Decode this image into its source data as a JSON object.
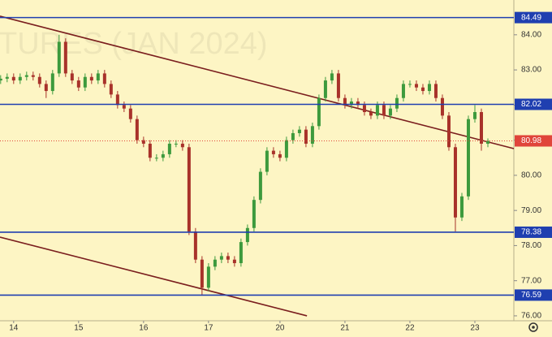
{
  "chart_data": {
    "type": "candlestick",
    "watermark": "TURES (JAN 2024)",
    "x": [
      -2,
      -1,
      0,
      1,
      2,
      3,
      4,
      5,
      6,
      7,
      8,
      9,
      10,
      11,
      12,
      13,
      14,
      15,
      16,
      17,
      18,
      19,
      20,
      21,
      22,
      23,
      24,
      25,
      26,
      27,
      28,
      29,
      30,
      31,
      32,
      33,
      34,
      35,
      36,
      37,
      38,
      39,
      40,
      41,
      42,
      43,
      44,
      45,
      46,
      47,
      48,
      49,
      50,
      51,
      52,
      53,
      54,
      55,
      56,
      57,
      58,
      59,
      60,
      61,
      62,
      63,
      64,
      65,
      66,
      67,
      68,
      69,
      70,
      71,
      72,
      73
    ],
    "open": [
      82.7,
      82.75,
      82.8,
      82.7,
      82.8,
      82.85,
      82.8,
      82.6,
      82.4,
      82.9,
      83.8,
      82.9,
      82.7,
      82.5,
      82.8,
      82.7,
      82.9,
      82.6,
      82.3,
      82.0,
      81.9,
      81.6,
      81.0,
      80.9,
      80.5,
      80.5,
      80.6,
      80.9,
      80.9,
      80.8,
      78.4,
      77.6,
      76.8,
      77.4,
      77.6,
      77.7,
      77.6,
      77.5,
      78.1,
      78.5,
      79.3,
      80.1,
      80.7,
      80.6,
      80.5,
      81.0,
      81.2,
      81.3,
      80.9,
      81.4,
      82.2,
      82.7,
      82.9,
      82.2,
      82.0,
      82.1,
      82.0,
      81.8,
      81.7,
      82.0,
      81.7,
      81.9,
      82.2,
      82.6,
      82.6,
      82.5,
      82.4,
      82.6,
      82.2,
      81.7,
      80.8,
      78.8,
      79.4,
      81.6,
      81.8,
      80.9
    ],
    "high": [
      82.85,
      82.9,
      82.9,
      82.9,
      82.95,
      82.95,
      82.9,
      82.7,
      83.0,
      84.0,
      83.9,
      83.0,
      82.8,
      82.9,
      82.9,
      83.0,
      83.0,
      82.7,
      82.4,
      82.1,
      82.0,
      81.7,
      81.1,
      81.0,
      80.6,
      80.7,
      81.0,
      81.0,
      81.0,
      80.9,
      78.5,
      77.7,
      77.5,
      77.7,
      77.8,
      77.8,
      77.7,
      78.2,
      78.6,
      79.4,
      80.2,
      80.8,
      80.8,
      80.7,
      81.1,
      81.3,
      81.4,
      81.4,
      81.5,
      82.3,
      82.8,
      83.0,
      83.0,
      82.3,
      82.2,
      82.2,
      82.1,
      81.9,
      82.1,
      82.1,
      82.0,
      82.3,
      82.7,
      82.7,
      82.7,
      82.6,
      82.7,
      82.7,
      82.3,
      81.8,
      80.9,
      79.5,
      81.7,
      82.0,
      81.9,
      81.05
    ],
    "low": [
      82.6,
      82.65,
      82.6,
      82.6,
      82.7,
      82.7,
      82.5,
      82.2,
      82.3,
      82.8,
      82.8,
      82.6,
      82.4,
      82.4,
      82.6,
      82.6,
      82.5,
      82.2,
      81.9,
      81.8,
      81.5,
      80.9,
      80.8,
      80.4,
      80.4,
      80.4,
      80.5,
      80.8,
      80.7,
      78.3,
      77.5,
      76.6,
      76.7,
      77.3,
      77.5,
      77.5,
      77.4,
      77.4,
      78.0,
      78.4,
      79.2,
      80.0,
      80.5,
      80.4,
      80.4,
      80.9,
      81.1,
      80.8,
      80.8,
      81.3,
      82.1,
      82.6,
      82.1,
      81.9,
      81.9,
      81.9,
      81.7,
      81.6,
      81.6,
      81.6,
      81.6,
      81.8,
      82.1,
      82.5,
      82.4,
      82.3,
      82.3,
      82.1,
      81.6,
      80.7,
      78.4,
      78.7,
      79.3,
      81.5,
      80.7,
      80.8
    ],
    "close": [
      82.75,
      82.8,
      82.7,
      82.8,
      82.85,
      82.8,
      82.6,
      82.4,
      82.9,
      83.8,
      82.9,
      82.7,
      82.5,
      82.8,
      82.7,
      82.9,
      82.6,
      82.3,
      82.0,
      81.9,
      81.6,
      81.0,
      80.9,
      80.5,
      80.5,
      80.6,
      80.9,
      80.9,
      80.8,
      78.4,
      77.6,
      76.8,
      77.4,
      77.6,
      77.7,
      77.6,
      77.5,
      78.1,
      78.5,
      79.3,
      80.1,
      80.7,
      80.6,
      80.5,
      81.0,
      81.2,
      81.3,
      80.9,
      81.4,
      82.2,
      82.7,
      82.9,
      82.2,
      82.0,
      82.1,
      82.0,
      81.8,
      81.7,
      82.0,
      81.7,
      81.9,
      82.2,
      82.6,
      82.6,
      82.5,
      82.4,
      82.6,
      82.2,
      81.7,
      80.8,
      78.8,
      79.4,
      81.6,
      81.8,
      80.9,
      80.98
    ],
    "up_color": "#3d9a3d",
    "down_color": "#a8322a",
    "xlim": [
      -2.1,
      77
    ],
    "xticks": [
      {
        "value": 0,
        "label": "14"
      },
      {
        "value": 10,
        "label": "15"
      },
      {
        "value": 20,
        "label": "16"
      },
      {
        "value": 30,
        "label": "17"
      },
      {
        "value": 41,
        "label": "20"
      },
      {
        "value": 51,
        "label": "21"
      },
      {
        "value": 61,
        "label": "22"
      },
      {
        "value": 71,
        "label": "23"
      }
    ],
    "ylim": [
      75.86,
      84.99
    ],
    "yticks": [
      {
        "value": 76,
        "label": "76.00"
      },
      {
        "value": 77,
        "label": "77.00"
      },
      {
        "value": 78,
        "label": "78.00"
      },
      {
        "value": 79,
        "label": "79.00"
      },
      {
        "value": 80,
        "label": "80.00"
      },
      {
        "value": 81,
        "label": "81.00"
      },
      {
        "value": 82,
        "label": "82.00"
      },
      {
        "value": 83,
        "label": "83.00"
      },
      {
        "value": 84,
        "label": "84.00"
      }
    ],
    "levels": [
      {
        "value": 84.49,
        "color": "#1f3fb0"
      },
      {
        "value": 82.02,
        "color": "#1f3fb0"
      },
      {
        "value": 78.38,
        "color": "#1f3fb0"
      },
      {
        "value": 76.59,
        "color": "#1f3fb0"
      }
    ],
    "last_price": {
      "value": 80.98,
      "color": "#e0453a"
    },
    "trend_lines": [
      {
        "points": [
          [
            -2.1,
            84.53
          ],
          [
            77,
            80.76
          ]
        ],
        "color": "#7a1e1e"
      },
      {
        "points": [
          [
            -2.1,
            78.24
          ],
          [
            45.15,
            76.0
          ]
        ],
        "color": "#7a1e1e"
      }
    ]
  }
}
